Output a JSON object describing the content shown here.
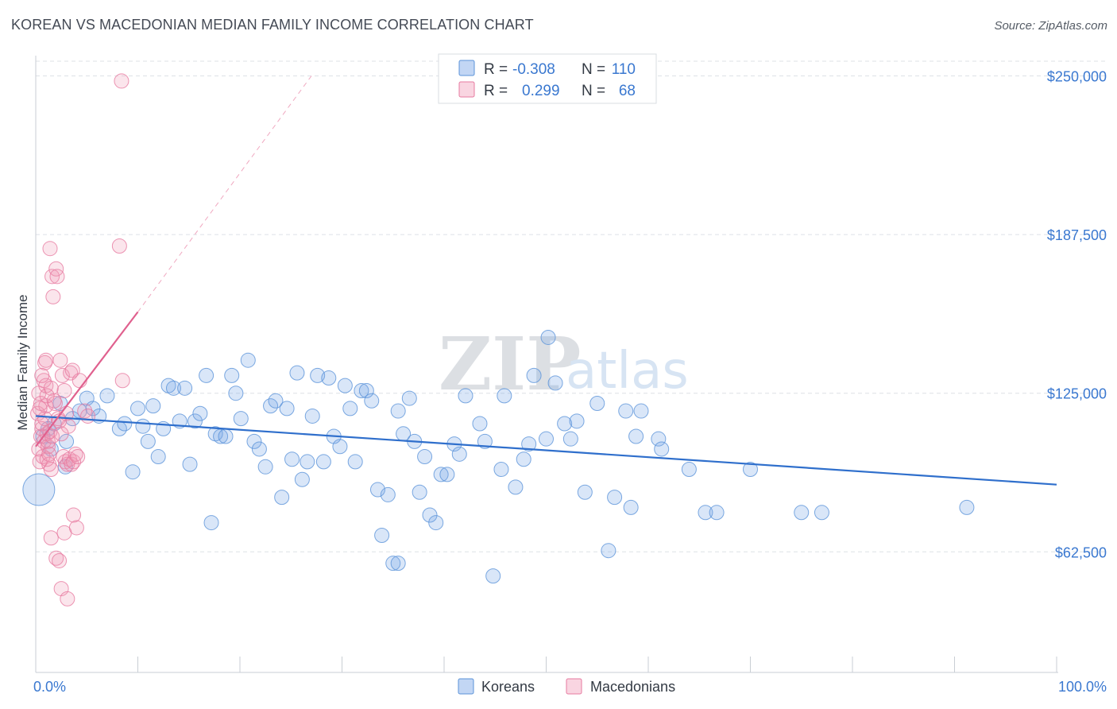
{
  "title": "KOREAN VS MACEDONIAN MEDIAN FAMILY INCOME CORRELATION CHART",
  "source": "Source: ZipAtlas.com",
  "watermark": {
    "zip": "ZIP",
    "atlas": "atlas"
  },
  "colors": {
    "koreans": "#5b93d9",
    "koreans_fill": "rgba(120,165,230,0.28)",
    "koreans_line": "#2f6fcc",
    "macedonians": "#e77aa0",
    "macedonians_fill": "rgba(240,150,180,0.25)",
    "macedonians_line": "#e0608e",
    "grid": "#dde1e6",
    "axis_label": "#3a78d0"
  },
  "legend_top": [
    {
      "r_label": "R =",
      "r_value": "-0.308",
      "n_label": "N =",
      "n_value": "110"
    },
    {
      "r_label": "R =",
      "r_value": "0.299",
      "n_label": "N =",
      "n_value": "68"
    }
  ],
  "chart_data": {
    "type": "scatter",
    "title": "KOREAN VS MACEDONIAN MEDIAN FAMILY INCOME CORRELATION CHART",
    "xlabel": "",
    "ylabel": "Median Family Income",
    "xlim": [
      0,
      100
    ],
    "ylim": [
      20000,
      258000
    ],
    "x_tick_labels": [
      "0.0%",
      "100.0%"
    ],
    "y_ticks": [
      62500,
      125000,
      187500,
      250000
    ],
    "y_tick_labels": [
      "$62,500",
      "$125,000",
      "$187,500",
      "$250,000"
    ],
    "grid": true,
    "legend": [
      "Koreans",
      "Macedonians"
    ],
    "series": [
      {
        "name": "Koreans",
        "trend": {
          "x0": 0,
          "y0": 116000,
          "x1": 100,
          "y1": 89000
        },
        "points": [
          [
            0.3,
            87000,
            20
          ],
          [
            0.7,
            108000,
            9
          ],
          [
            1.2,
            111000,
            9
          ],
          [
            1.8,
            113000,
            9
          ],
          [
            2.4,
            121000,
            9
          ],
          [
            3.0,
            106000,
            9
          ],
          [
            3.6,
            115000,
            9
          ],
          [
            4.3,
            118000,
            9
          ],
          [
            5.0,
            123000,
            9
          ],
          [
            5.6,
            119000,
            9
          ],
          [
            6.2,
            116000,
            9
          ],
          [
            7.0,
            124000,
            9
          ],
          [
            1.5,
            103000,
            9
          ],
          [
            2.9,
            96000,
            9
          ],
          [
            8.2,
            111000,
            9
          ],
          [
            8.7,
            113000,
            9
          ],
          [
            9.5,
            94000,
            9
          ],
          [
            10.0,
            119000,
            9
          ],
          [
            10.5,
            112000,
            9
          ],
          [
            11.0,
            106000,
            9
          ],
          [
            11.5,
            120000,
            9
          ],
          [
            12.0,
            100000,
            9
          ],
          [
            12.5,
            111000,
            9
          ],
          [
            13.0,
            128000,
            9
          ],
          [
            13.5,
            127000,
            9
          ],
          [
            14.1,
            114000,
            9
          ],
          [
            14.6,
            127000,
            9
          ],
          [
            15.1,
            97000,
            9
          ],
          [
            15.6,
            114000,
            9
          ],
          [
            16.1,
            117000,
            9
          ],
          [
            16.7,
            132000,
            9
          ],
          [
            17.2,
            74000,
            9
          ],
          [
            17.6,
            109000,
            9
          ],
          [
            18.1,
            108000,
            9
          ],
          [
            18.6,
            108000,
            9
          ],
          [
            19.2,
            132000,
            9
          ],
          [
            19.6,
            125000,
            9
          ],
          [
            20.1,
            115000,
            9
          ],
          [
            20.8,
            138000,
            9
          ],
          [
            21.4,
            106000,
            9
          ],
          [
            21.9,
            103000,
            9
          ],
          [
            22.5,
            96000,
            9
          ],
          [
            23.0,
            120000,
            9
          ],
          [
            23.5,
            122000,
            9
          ],
          [
            24.1,
            84000,
            9
          ],
          [
            24.6,
            119000,
            9
          ],
          [
            25.1,
            99000,
            9
          ],
          [
            25.6,
            133000,
            9
          ],
          [
            26.1,
            91000,
            9
          ],
          [
            26.6,
            98000,
            9
          ],
          [
            27.1,
            116000,
            9
          ],
          [
            27.6,
            132000,
            9
          ],
          [
            28.2,
            98000,
            9
          ],
          [
            28.7,
            131000,
            9
          ],
          [
            29.2,
            108000,
            9
          ],
          [
            29.8,
            104000,
            9
          ],
          [
            30.3,
            128000,
            9
          ],
          [
            30.8,
            119000,
            9
          ],
          [
            31.3,
            98000,
            9
          ],
          [
            31.9,
            126000,
            9
          ],
          [
            32.4,
            126000,
            9
          ],
          [
            32.9,
            122000,
            9
          ],
          [
            33.5,
            87000,
            9
          ],
          [
            33.9,
            69000,
            9
          ],
          [
            34.5,
            85000,
            9
          ],
          [
            35.0,
            58000,
            9
          ],
          [
            35.5,
            118000,
            9
          ],
          [
            36.0,
            109000,
            9
          ],
          [
            36.6,
            123000,
            9
          ],
          [
            37.1,
            106000,
            9
          ],
          [
            37.6,
            86000,
            9
          ],
          [
            38.1,
            100000,
            9
          ],
          [
            38.6,
            77000,
            9
          ],
          [
            39.2,
            74000,
            9
          ],
          [
            39.7,
            93000,
            9
          ],
          [
            40.3,
            93000,
            9
          ],
          [
            41.0,
            105000,
            9
          ],
          [
            41.5,
            101000,
            9
          ],
          [
            42.1,
            124000,
            9
          ],
          [
            43.5,
            113000,
            9
          ],
          [
            44.0,
            106000,
            9
          ],
          [
            44.8,
            53000,
            9
          ],
          [
            45.6,
            95000,
            9
          ],
          [
            45.9,
            124000,
            9
          ],
          [
            47.0,
            88000,
            9
          ],
          [
            47.8,
            99000,
            9
          ],
          [
            48.3,
            105000,
            9
          ],
          [
            48.8,
            132000,
            9
          ],
          [
            50.0,
            107000,
            9
          ],
          [
            50.2,
            147000,
            9
          ],
          [
            50.9,
            129000,
            9
          ],
          [
            51.8,
            113000,
            9
          ],
          [
            52.4,
            107000,
            9
          ],
          [
            53.0,
            114000,
            9
          ],
          [
            53.8,
            86000,
            9
          ],
          [
            55.0,
            121000,
            9
          ],
          [
            56.1,
            63000,
            9
          ],
          [
            56.7,
            84000,
            9
          ],
          [
            57.8,
            118000,
            9
          ],
          [
            58.3,
            80000,
            9
          ],
          [
            58.8,
            108000,
            9
          ],
          [
            59.3,
            118000,
            9
          ],
          [
            61.0,
            107000,
            9
          ],
          [
            61.3,
            103000,
            9
          ],
          [
            64.0,
            95000,
            9
          ],
          [
            65.6,
            78000,
            9
          ],
          [
            66.7,
            78000,
            9
          ],
          [
            70.0,
            95000,
            9
          ],
          [
            75.0,
            78000,
            9
          ],
          [
            77.0,
            78000,
            9
          ],
          [
            91.2,
            80000,
            9
          ],
          [
            35.5,
            58000,
            9
          ]
        ]
      },
      {
        "name": "Macedonians",
        "trend": {
          "x0": 0,
          "y0": 104000,
          "x1": 10,
          "y1": 157000
        },
        "trend_dashed": {
          "x0": 10,
          "y0": 157000,
          "x1": 27,
          "y1": 250000
        },
        "points": [
          [
            0.2,
            117000,
            9
          ],
          [
            0.3,
            103000,
            9
          ],
          [
            0.4,
            98000,
            9
          ],
          [
            0.5,
            108000,
            9
          ],
          [
            0.6,
            111000,
            9
          ],
          [
            0.7,
            100000,
            9
          ],
          [
            0.8,
            106000,
            9
          ],
          [
            0.9,
            115000,
            9
          ],
          [
            1.0,
            120000,
            9
          ],
          [
            1.1,
            109000,
            9
          ],
          [
            1.2,
            104000,
            9
          ],
          [
            1.3,
            97000,
            9
          ],
          [
            0.3,
            125000,
            9
          ],
          [
            0.5,
            121000,
            9
          ],
          [
            0.6,
            113000,
            9
          ],
          [
            0.8,
            130000,
            9
          ],
          [
            0.9,
            137000,
            9
          ],
          [
            1.0,
            128000,
            9
          ],
          [
            1.1,
            99000,
            9
          ],
          [
            1.2,
            106000,
            9
          ],
          [
            1.3,
            101000,
            9
          ],
          [
            1.4,
            110000,
            9
          ],
          [
            1.5,
            95000,
            9
          ],
          [
            1.6,
            108000,
            9
          ],
          [
            1.4,
            182000,
            9
          ],
          [
            1.6,
            171000,
            9
          ],
          [
            1.7,
            163000,
            9
          ],
          [
            2.0,
            174000,
            9
          ],
          [
            2.1,
            171000,
            9
          ],
          [
            2.4,
            138000,
            9
          ],
          [
            2.6,
            132000,
            9
          ],
          [
            2.8,
            126000,
            9
          ],
          [
            3.0,
            117000,
            9
          ],
          [
            3.2,
            112000,
            9
          ],
          [
            3.4,
            133000,
            9
          ],
          [
            3.6,
            134000,
            9
          ],
          [
            0.6,
            132000,
            9
          ],
          [
            1.0,
            138000,
            9
          ],
          [
            1.5,
            127000,
            9
          ],
          [
            1.9,
            121000,
            9
          ],
          [
            2.2,
            115000,
            9
          ],
          [
            2.5,
            109000,
            9
          ],
          [
            2.7,
            100000,
            9
          ],
          [
            2.9,
            98000,
            9
          ],
          [
            3.1,
            97000,
            9
          ],
          [
            3.3,
            99000,
            9
          ],
          [
            3.5,
            97000,
            9
          ],
          [
            3.7,
            98000,
            9
          ],
          [
            3.9,
            101000,
            9
          ],
          [
            4.1,
            100000,
            9
          ],
          [
            4.3,
            130000,
            9
          ],
          [
            4.8,
            118000,
            9
          ],
          [
            5.1,
            116000,
            9
          ],
          [
            1.5,
            68000,
            9
          ],
          [
            2.0,
            60000,
            9
          ],
          [
            2.3,
            59000,
            9
          ],
          [
            2.5,
            48000,
            9
          ],
          [
            2.8,
            70000,
            9
          ],
          [
            3.1,
            44000,
            9
          ],
          [
            3.7,
            77000,
            9
          ],
          [
            4.0,
            72000,
            9
          ],
          [
            8.2,
            183000,
            9
          ],
          [
            8.5,
            130000,
            9
          ],
          [
            8.4,
            248000,
            9
          ],
          [
            1.8,
            122000,
            9
          ],
          [
            0.4,
            119000,
            9
          ],
          [
            1.1,
            124000,
            9
          ],
          [
            2.3,
            114000,
            9
          ]
        ]
      }
    ]
  },
  "bottom_legend": [
    {
      "label": "Koreans"
    },
    {
      "label": "Macedonians"
    }
  ]
}
